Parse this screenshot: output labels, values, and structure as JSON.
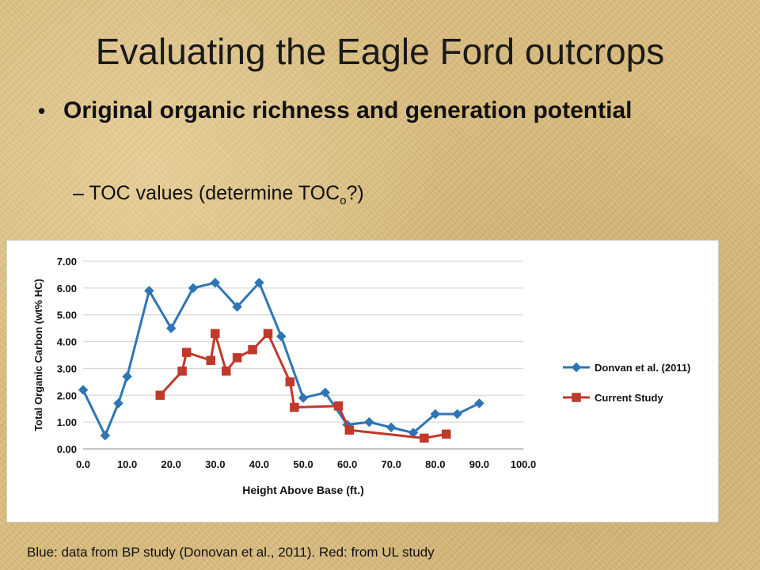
{
  "slide": {
    "title": "Evaluating the Eagle Ford outcrops",
    "bullet": "Original organic richness and generation potential",
    "sub_bullet_prefix": "– TOC values (determine TOC",
    "sub_bullet_subscript": "o",
    "sub_bullet_suffix": "?)",
    "caption": "Blue: data from BP study (Donovan et al., 2011).  Red: from UL study"
  },
  "chart_data": {
    "type": "line",
    "title": "",
    "xlabel": "Height Above Base (ft.)",
    "ylabel": "Total Organic Carbon (wt% HC)",
    "xlim": [
      0,
      100
    ],
    "ylim": [
      0,
      7
    ],
    "x_ticks": [
      "0.0",
      "10.0",
      "20.0",
      "30.0",
      "40.0",
      "50.0",
      "60.0",
      "70.0",
      "80.0",
      "90.0",
      "100.0"
    ],
    "y_ticks": [
      "0.00",
      "1.00",
      "2.00",
      "3.00",
      "4.00",
      "5.00",
      "6.00",
      "7.00"
    ],
    "grid": "horizontal",
    "legend_position": "right",
    "series": [
      {
        "name": "Donvan et al. (2011)",
        "color": "#2e75b6",
        "marker": "diamond",
        "points": [
          [
            0,
            2.2
          ],
          [
            5,
            0.5
          ],
          [
            8,
            1.7
          ],
          [
            10,
            2.7
          ],
          [
            15,
            5.9
          ],
          [
            20,
            4.5
          ],
          [
            25,
            6.0
          ],
          [
            30,
            6.2
          ],
          [
            35,
            5.3
          ],
          [
            40,
            6.2
          ],
          [
            45,
            4.2
          ],
          [
            50,
            1.9
          ],
          [
            55,
            2.1
          ],
          [
            60,
            0.9
          ],
          [
            65,
            1.0
          ],
          [
            70,
            0.8
          ],
          [
            75,
            0.6
          ],
          [
            80,
            1.3
          ],
          [
            85,
            1.3
          ],
          [
            90,
            1.7
          ]
        ]
      },
      {
        "name": "Current Study",
        "color": "#c0392b",
        "marker": "square",
        "points": [
          [
            17.5,
            2.0
          ],
          [
            22.5,
            2.9
          ],
          [
            23.5,
            3.6
          ],
          [
            29,
            3.3
          ],
          [
            30,
            4.3
          ],
          [
            32.5,
            2.9
          ],
          [
            35,
            3.4
          ],
          [
            38.5,
            3.7
          ],
          [
            42,
            4.3
          ],
          [
            47,
            2.5
          ],
          [
            48,
            1.55
          ],
          [
            58,
            1.6
          ],
          [
            60.5,
            0.7
          ],
          [
            77.5,
            0.4
          ],
          [
            82.5,
            0.55
          ]
        ]
      }
    ]
  }
}
